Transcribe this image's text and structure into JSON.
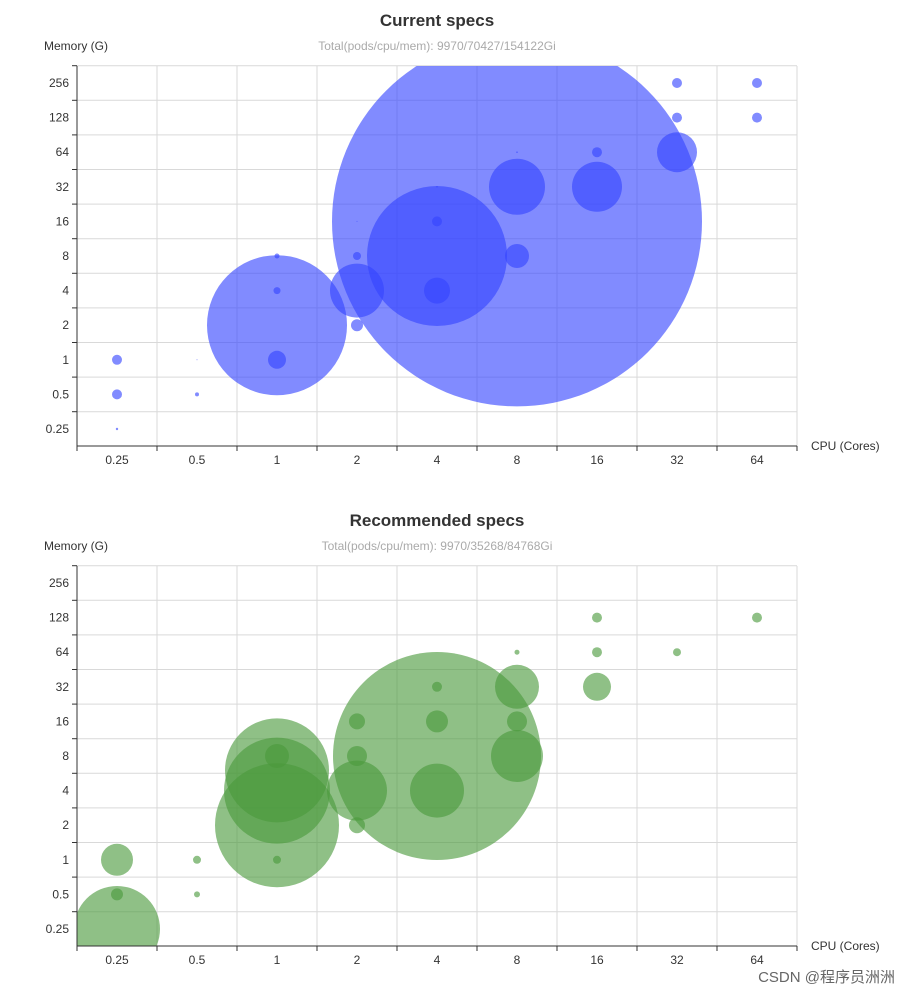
{
  "watermark": "CSDN @程序员洲洲",
  "chart_data": [
    {
      "type": "scatter",
      "title": "Current specs",
      "subtitle": "Total(pods/cpu/mem): 9970/70427/154122Gi",
      "xlabel": "CPU (Cores)",
      "ylabel": "Memory (G)",
      "x_ticks": [
        "0.25",
        "0.5",
        "1",
        "2",
        "4",
        "8",
        "16",
        "32",
        "64"
      ],
      "y_ticks": [
        "0.25",
        "0.5",
        "1",
        "2",
        "4",
        "8",
        "16",
        "32",
        "64",
        "128",
        "256"
      ],
      "x_scale": "log2",
      "y_scale": "log2",
      "grid": true,
      "color": "#3344ff",
      "points": [
        {
          "cpu": 0.25,
          "mem": 1,
          "r": 5
        },
        {
          "cpu": 0.25,
          "mem": 0.5,
          "r": 5
        },
        {
          "cpu": 0.25,
          "mem": 0.25,
          "r": 1.2
        },
        {
          "cpu": 0.5,
          "mem": 1,
          "r": 0.5
        },
        {
          "cpu": 0.5,
          "mem": 0.5,
          "r": 2
        },
        {
          "cpu": 1,
          "mem": 8,
          "r": 2.5
        },
        {
          "cpu": 1,
          "mem": 4,
          "r": 3.5
        },
        {
          "cpu": 1,
          "mem": 2,
          "r": 70
        },
        {
          "cpu": 1,
          "mem": 1,
          "r": 9
        },
        {
          "cpu": 2,
          "mem": 16,
          "r": 0.5
        },
        {
          "cpu": 2,
          "mem": 8,
          "r": 4
        },
        {
          "cpu": 2,
          "mem": 4,
          "r": 27
        },
        {
          "cpu": 2,
          "mem": 2,
          "r": 6
        },
        {
          "cpu": 4,
          "mem": 32,
          "r": 0.8
        },
        {
          "cpu": 4,
          "mem": 16,
          "r": 5
        },
        {
          "cpu": 4,
          "mem": 8,
          "r": 70
        },
        {
          "cpu": 4,
          "mem": 4,
          "r": 13
        },
        {
          "cpu": 8,
          "mem": 64,
          "r": 0.8
        },
        {
          "cpu": 8,
          "mem": 32,
          "r": 28
        },
        {
          "cpu": 8,
          "mem": 16,
          "r": 185
        },
        {
          "cpu": 8,
          "mem": 8,
          "r": 12
        },
        {
          "cpu": 16,
          "mem": 64,
          "r": 5
        },
        {
          "cpu": 16,
          "mem": 32,
          "r": 25
        },
        {
          "cpu": 32,
          "mem": 256,
          "r": 5
        },
        {
          "cpu": 32,
          "mem": 128,
          "r": 5
        },
        {
          "cpu": 32,
          "mem": 64,
          "r": 20
        },
        {
          "cpu": 64,
          "mem": 256,
          "r": 5
        },
        {
          "cpu": 64,
          "mem": 128,
          "r": 5
        }
      ]
    },
    {
      "type": "scatter",
      "title": "Recommended specs",
      "subtitle": "Total(pods/cpu/mem): 9970/35268/84768Gi",
      "xlabel": "CPU (Cores)",
      "ylabel": "Memory (G)",
      "x_ticks": [
        "0.25",
        "0.5",
        "1",
        "2",
        "4",
        "8",
        "16",
        "32",
        "64"
      ],
      "y_ticks": [
        "0.25",
        "0.5",
        "1",
        "2",
        "4",
        "8",
        "16",
        "32",
        "64",
        "128",
        "256"
      ],
      "x_scale": "log2",
      "y_scale": "log2",
      "grid": true,
      "color": "#4a9a3c",
      "points": [
        {
          "cpu": 0.25,
          "mem": 1,
          "r": 16
        },
        {
          "cpu": 0.25,
          "mem": 0.5,
          "r": 6
        },
        {
          "cpu": 0.25,
          "mem": 0.25,
          "r": 43
        },
        {
          "cpu": 0.5,
          "mem": 1,
          "r": 4
        },
        {
          "cpu": 0.5,
          "mem": 0.5,
          "r": 3
        },
        {
          "cpu": 1,
          "mem": 8,
          "r": 12
        },
        {
          "cpu": 1,
          "mem": 6,
          "r": 52
        },
        {
          "cpu": 1,
          "mem": 4,
          "r": 53
        },
        {
          "cpu": 1,
          "mem": 2,
          "r": 62
        },
        {
          "cpu": 1,
          "mem": 1,
          "r": 4
        },
        {
          "cpu": 2,
          "mem": 16,
          "r": 8
        },
        {
          "cpu": 2,
          "mem": 8,
          "r": 10
        },
        {
          "cpu": 2,
          "mem": 4,
          "r": 30
        },
        {
          "cpu": 2,
          "mem": 2,
          "r": 8
        },
        {
          "cpu": 4,
          "mem": 32,
          "r": 5
        },
        {
          "cpu": 4,
          "mem": 16,
          "r": 11
        },
        {
          "cpu": 4,
          "mem": 8,
          "r": 104
        },
        {
          "cpu": 4,
          "mem": 4,
          "r": 27
        },
        {
          "cpu": 8,
          "mem": 64,
          "r": 2.5
        },
        {
          "cpu": 8,
          "mem": 32,
          "r": 22
        },
        {
          "cpu": 8,
          "mem": 16,
          "r": 10
        },
        {
          "cpu": 8,
          "mem": 8,
          "r": 26
        },
        {
          "cpu": 16,
          "mem": 128,
          "r": 5
        },
        {
          "cpu": 16,
          "mem": 64,
          "r": 5
        },
        {
          "cpu": 16,
          "mem": 32,
          "r": 14
        },
        {
          "cpu": 32,
          "mem": 64,
          "r": 4
        },
        {
          "cpu": 64,
          "mem": 128,
          "r": 5
        }
      ]
    }
  ]
}
